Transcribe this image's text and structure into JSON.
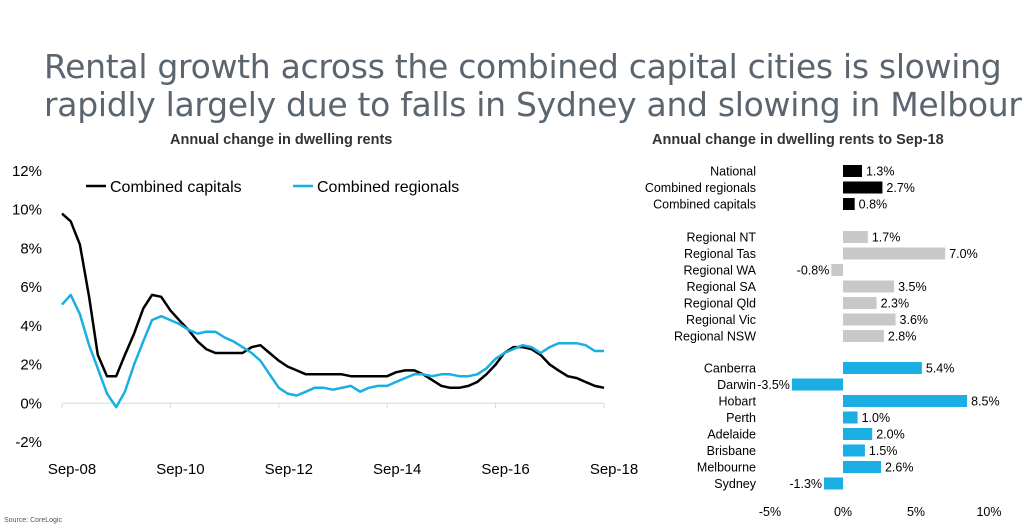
{
  "title": {
    "line1": "Rental growth across the combined capital cities is slowing",
    "line2": "rapidly largely due to falls in Sydney and slowing in Melbourne"
  },
  "source": "Source:  CoreLogic",
  "colors": {
    "capitals": "#000000",
    "regionals": "#1aaee3",
    "gray": "#c8c8c8"
  },
  "chart_data": [
    {
      "type": "line",
      "title": "Annual change in dwelling rents",
      "xlabel": "",
      "ylabel": "",
      "ylim": [
        -2,
        12
      ],
      "yticks": [
        -2,
        0,
        2,
        4,
        6,
        8,
        10,
        12
      ],
      "ytick_labels": [
        "-2%",
        "0%",
        "2%",
        "4%",
        "6%",
        "8%",
        "10%",
        "12%"
      ],
      "xticks": [
        2008.67,
        2010.67,
        2012.67,
        2014.67,
        2016.67,
        2018.67
      ],
      "xtick_labels": [
        "Sep-08",
        "Sep-10",
        "Sep-12",
        "Sep-14",
        "Sep-16",
        "Sep-18"
      ],
      "xlim": [
        2008.67,
        2018.67
      ],
      "legend_position": "top",
      "series": [
        {
          "name": "Combined capitals",
          "x": [
            2008.67,
            2008.83,
            2009.0,
            2009.17,
            2009.33,
            2009.5,
            2009.67,
            2009.83,
            2010.0,
            2010.17,
            2010.33,
            2010.5,
            2010.67,
            2010.83,
            2011.0,
            2011.17,
            2011.33,
            2011.5,
            2011.67,
            2011.83,
            2012.0,
            2012.17,
            2012.33,
            2012.5,
            2012.67,
            2012.83,
            2013.0,
            2013.17,
            2013.33,
            2013.5,
            2013.67,
            2013.83,
            2014.0,
            2014.17,
            2014.33,
            2014.5,
            2014.67,
            2014.83,
            2015.0,
            2015.17,
            2015.33,
            2015.5,
            2015.67,
            2015.83,
            2016.0,
            2016.17,
            2016.33,
            2016.5,
            2016.67,
            2016.83,
            2017.0,
            2017.17,
            2017.33,
            2017.5,
            2017.67,
            2017.83,
            2018.0,
            2018.17,
            2018.33,
            2018.5,
            2018.67
          ],
          "values": [
            9.8,
            9.4,
            8.2,
            5.5,
            2.5,
            1.4,
            1.4,
            2.5,
            3.6,
            4.9,
            5.6,
            5.5,
            4.8,
            4.3,
            3.8,
            3.2,
            2.8,
            2.6,
            2.6,
            2.6,
            2.6,
            2.9,
            3.0,
            2.6,
            2.2,
            1.9,
            1.7,
            1.5,
            1.5,
            1.5,
            1.5,
            1.5,
            1.4,
            1.4,
            1.4,
            1.4,
            1.4,
            1.6,
            1.7,
            1.7,
            1.5,
            1.2,
            0.9,
            0.8,
            0.8,
            0.9,
            1.1,
            1.5,
            2.0,
            2.6,
            2.9,
            2.9,
            2.8,
            2.5,
            2.0,
            1.7,
            1.4,
            1.3,
            1.1,
            0.9,
            0.8
          ]
        },
        {
          "name": "Combined regionals",
          "x": [
            2008.67,
            2008.83,
            2009.0,
            2009.17,
            2009.33,
            2009.5,
            2009.67,
            2009.83,
            2010.0,
            2010.17,
            2010.33,
            2010.5,
            2010.67,
            2010.83,
            2011.0,
            2011.17,
            2011.33,
            2011.5,
            2011.67,
            2011.83,
            2012.0,
            2012.17,
            2012.33,
            2012.5,
            2012.67,
            2012.83,
            2013.0,
            2013.17,
            2013.33,
            2013.5,
            2013.67,
            2013.83,
            2014.0,
            2014.17,
            2014.33,
            2014.5,
            2014.67,
            2014.83,
            2015.0,
            2015.17,
            2015.33,
            2015.5,
            2015.67,
            2015.83,
            2016.0,
            2016.17,
            2016.33,
            2016.5,
            2016.67,
            2016.83,
            2017.0,
            2017.17,
            2017.33,
            2017.5,
            2017.67,
            2017.83,
            2018.0,
            2018.17,
            2018.33,
            2018.5,
            2018.67
          ],
          "values": [
            5.1,
            5.6,
            4.6,
            3.0,
            1.8,
            0.5,
            -0.2,
            0.6,
            2.0,
            3.2,
            4.3,
            4.5,
            4.3,
            4.1,
            3.8,
            3.6,
            3.7,
            3.7,
            3.4,
            3.2,
            2.9,
            2.6,
            2.2,
            1.5,
            0.8,
            0.5,
            0.4,
            0.6,
            0.8,
            0.8,
            0.7,
            0.8,
            0.9,
            0.6,
            0.8,
            0.9,
            0.9,
            1.1,
            1.3,
            1.5,
            1.5,
            1.4,
            1.5,
            1.5,
            1.4,
            1.4,
            1.5,
            1.8,
            2.3,
            2.6,
            2.8,
            3.0,
            2.9,
            2.6,
            2.9,
            3.1,
            3.1,
            3.1,
            3.0,
            2.7,
            2.7
          ]
        }
      ]
    },
    {
      "type": "bar",
      "orientation": "horizontal",
      "title": "Annual change in dwelling rents to Sep-18",
      "xlim": [
        -5,
        10
      ],
      "xticks": [
        -5,
        0,
        5,
        10
      ],
      "xtick_labels": [
        "-5%",
        "0%",
        "5%",
        "10%"
      ],
      "groups": [
        {
          "color": "black",
          "bars": [
            {
              "label": "National",
              "value": 1.3,
              "text": "1.3%"
            },
            {
              "label": "Combined regionals",
              "value": 2.7,
              "text": "2.7%"
            },
            {
              "label": "Combined capitals",
              "value": 0.8,
              "text": "0.8%"
            }
          ]
        },
        {
          "color": "gray",
          "bars": [
            {
              "label": "Regional NT",
              "value": 1.7,
              "text": "1.7%"
            },
            {
              "label": "Regional Tas",
              "value": 7.0,
              "text": "7.0%"
            },
            {
              "label": "Regional WA",
              "value": -0.8,
              "text": "-0.8%"
            },
            {
              "label": "Regional SA",
              "value": 3.5,
              "text": "3.5%"
            },
            {
              "label": "Regional Qld",
              "value": 2.3,
              "text": "2.3%"
            },
            {
              "label": "Regional Vic",
              "value": 3.6,
              "text": "3.6%"
            },
            {
              "label": "Regional NSW",
              "value": 2.8,
              "text": "2.8%"
            }
          ]
        },
        {
          "color": "blue",
          "bars": [
            {
              "label": "Canberra",
              "value": 5.4,
              "text": "5.4%"
            },
            {
              "label": "Darwin",
              "value": -3.5,
              "text": "-3.5%"
            },
            {
              "label": "Hobart",
              "value": 8.5,
              "text": "8.5%"
            },
            {
              "label": "Perth",
              "value": 1.0,
              "text": "1.0%"
            },
            {
              "label": "Adelaide",
              "value": 2.0,
              "text": "2.0%"
            },
            {
              "label": "Brisbane",
              "value": 1.5,
              "text": "1.5%"
            },
            {
              "label": "Melbourne",
              "value": 2.6,
              "text": "2.6%"
            },
            {
              "label": "Sydney",
              "value": -1.3,
              "text": "-1.3%"
            }
          ]
        }
      ]
    }
  ]
}
